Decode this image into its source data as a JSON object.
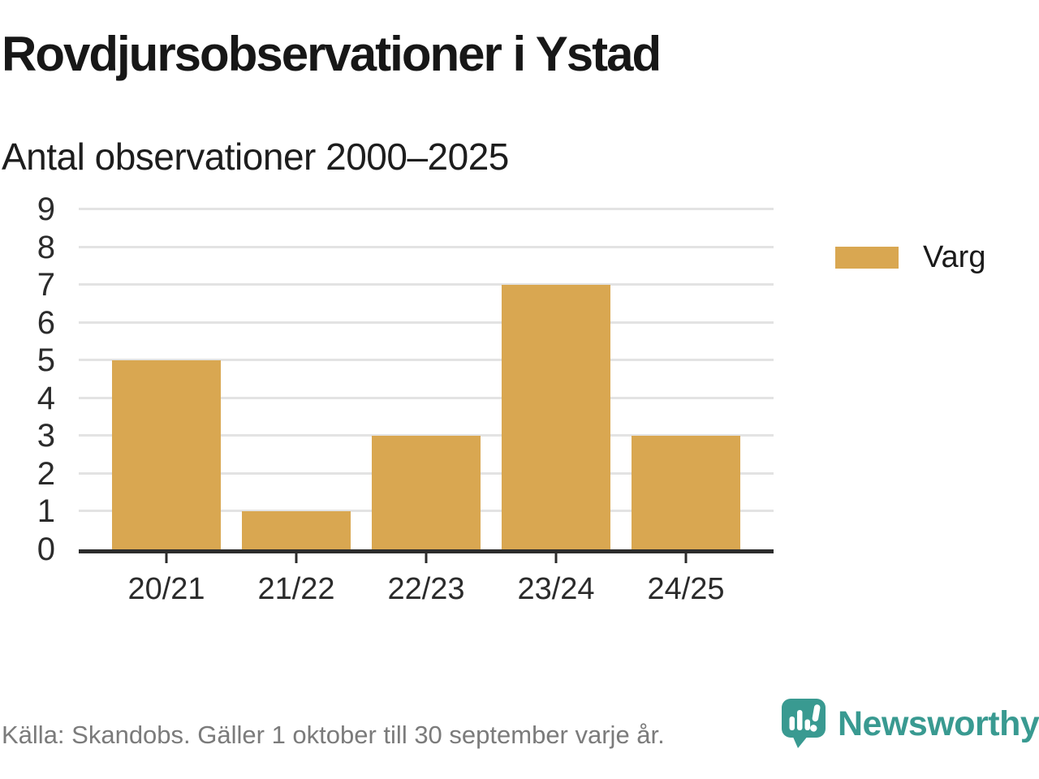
{
  "header": {
    "title": "Rovdjursobservationer i Ystad",
    "subtitle": "Antal observationer 2000–2025"
  },
  "legend": {
    "items": [
      {
        "label": "Varg",
        "color": "#d9a751"
      }
    ]
  },
  "footer": {
    "source": "Källa: Skandobs. Gäller 1 oktober till 30 september varje år.",
    "brand_name": "Newsworthy",
    "brand_icon": "newsworthy-speech-bubble-chart-icon"
  },
  "colors": {
    "bar": "#d9a751",
    "brand_teal": "#399a91",
    "gridline": "#e3e3e3",
    "axis": "#2c2c2c",
    "muted_text": "#7b7b7b"
  },
  "chart_data": {
    "type": "bar",
    "categories": [
      "20/21",
      "21/22",
      "22/23",
      "23/24",
      "24/25"
    ],
    "series": [
      {
        "name": "Varg",
        "values": [
          5,
          1,
          3,
          7,
          3
        ]
      }
    ],
    "title": "Rovdjursobservationer i Ystad",
    "subtitle": "Antal observationer 2000–2025",
    "xlabel": "",
    "ylabel": "",
    "ylim": [
      0,
      9
    ],
    "yticks": [
      0,
      1,
      2,
      3,
      4,
      5,
      6,
      7,
      8,
      9
    ],
    "grid": true,
    "legend_position": "right",
    "bar_color": "#d9a751"
  }
}
